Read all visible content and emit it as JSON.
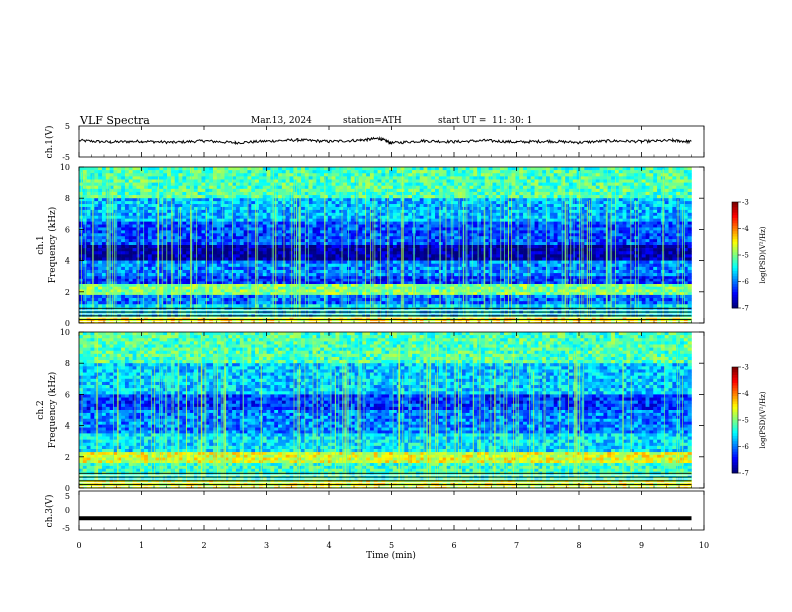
{
  "header": {
    "title": "VLF  Spectra",
    "date": "Mar.13, 2024",
    "station": "station=ATH",
    "start_label": "start  UT  =",
    "start_time": "11: 30: 1"
  },
  "chart_data": [
    {
      "type": "line",
      "ylabel": "ch.1(V)",
      "ylim": [
        -5,
        5
      ],
      "ytick_labels": [
        "5",
        "-5"
      ],
      "x": [
        0,
        0.5,
        1,
        1.5,
        2,
        2.5,
        3,
        3.5,
        4,
        4.5,
        4.8,
        5,
        5.5,
        6,
        6.5,
        7,
        7.5,
        8,
        8.5,
        9,
        9.5,
        9.8
      ],
      "values": [
        0.3,
        -0.2,
        0.1,
        -0.3,
        0.2,
        -0.4,
        0.1,
        0.5,
        0.0,
        0.4,
        1.0,
        -0.5,
        0.2,
        -0.1,
        0.3,
        -0.2,
        0.1,
        -0.3,
        0.2,
        0.0,
        0.3,
        -0.1
      ],
      "color": "#000000"
    },
    {
      "type": "heatmap",
      "ylabel": "ch.1",
      "ylabel2": "Frequency  (kHz)",
      "ylim": [
        0,
        10
      ],
      "ytick_labels": [
        "0",
        "2",
        "4",
        "6",
        "8",
        "10"
      ],
      "colorbar_label": "log(PSD)(V²/Hz)",
      "colorbar_ticks": [
        "-3",
        "-4",
        "-5",
        "-6",
        "-7"
      ],
      "clim": [
        -7,
        -3
      ],
      "bands": [
        {
          "f": [
            8,
            10
          ],
          "level": -5.2
        },
        {
          "f": [
            6.5,
            8
          ],
          "level": -5.8
        },
        {
          "f": [
            5,
            6.5
          ],
          "level": -6.2
        },
        {
          "f": [
            4,
            5
          ],
          "level": -6.9
        },
        {
          "f": [
            3,
            4
          ],
          "level": -6.0
        },
        {
          "f": [
            2.5,
            3
          ],
          "level": -6.3
        },
        {
          "f": [
            1.8,
            2.5
          ],
          "level": -5.0
        },
        {
          "f": [
            1.2,
            1.8
          ],
          "level": -6.1
        },
        {
          "f": [
            0.4,
            1.2
          ],
          "level": -5.6
        },
        {
          "f": [
            0,
            0.4
          ],
          "level": -4.5
        }
      ]
    },
    {
      "type": "heatmap",
      "ylabel": "ch.2",
      "ylabel2": "Frequency  (kHz)",
      "ylim": [
        0,
        10
      ],
      "ytick_labels": [
        "0",
        "2",
        "4",
        "6",
        "8",
        "10"
      ],
      "colorbar_label": "log(PSD)(V²/Hz)",
      "colorbar_ticks": [
        "-3",
        "-4",
        "-5",
        "-6",
        "-7"
      ],
      "clim": [
        -7,
        -3
      ],
      "bands": [
        {
          "f": [
            8,
            10
          ],
          "level": -5.2
        },
        {
          "f": [
            6,
            8
          ],
          "level": -5.7
        },
        {
          "f": [
            5,
            6
          ],
          "level": -6.3
        },
        {
          "f": [
            3.5,
            5
          ],
          "level": -6.0
        },
        {
          "f": [
            2.3,
            3.5
          ],
          "level": -5.6
        },
        {
          "f": [
            1.6,
            2.3
          ],
          "level": -4.6
        },
        {
          "f": [
            0.5,
            1.6
          ],
          "level": -5.3
        },
        {
          "f": [
            0,
            0.5
          ],
          "level": -4.6
        }
      ]
    },
    {
      "type": "line",
      "ylabel": "ch.3(V)",
      "ylim": [
        -5,
        5
      ],
      "ytick_labels": [
        "5",
        "0",
        "-5"
      ],
      "x": [
        0,
        9.8
      ],
      "values": [
        -2,
        -2
      ],
      "color": "#000000"
    }
  ],
  "x_axis": {
    "label": "Time  (min)",
    "xlim": [
      0,
      10
    ],
    "tick_labels": [
      "0",
      "1",
      "2",
      "3",
      "4",
      "5",
      "6",
      "7",
      "8",
      "9",
      "10"
    ]
  }
}
